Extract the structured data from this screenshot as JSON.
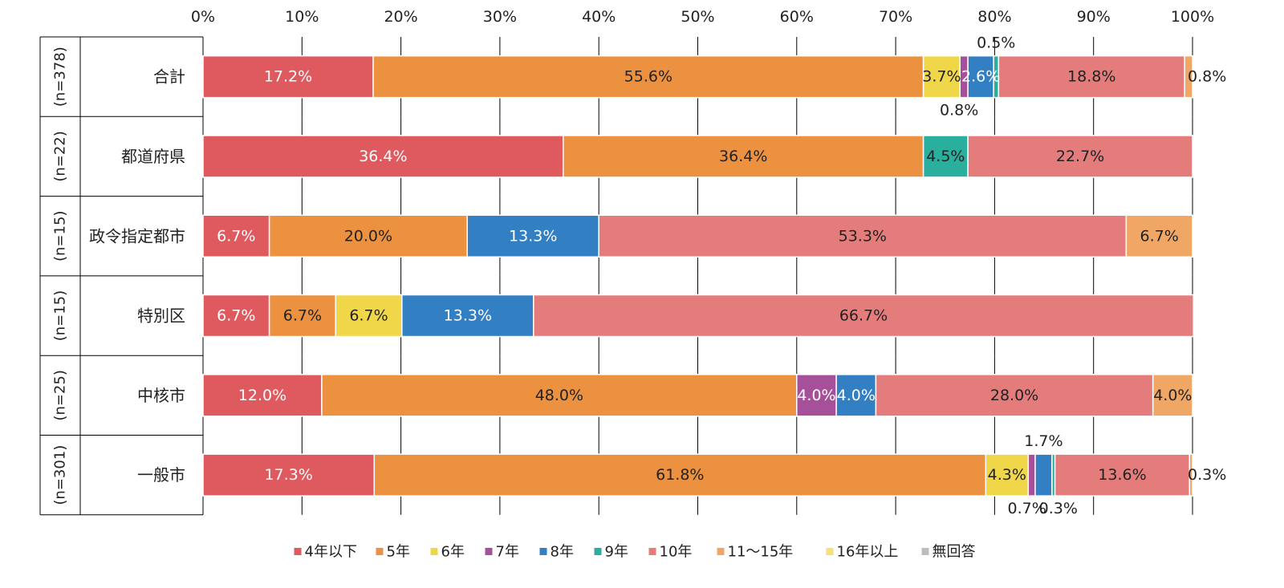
{
  "chart_data": {
    "type": "bar",
    "orientation": "horizontal",
    "stacked": true,
    "x_ticks": [
      "0%",
      "10%",
      "20%",
      "30%",
      "40%",
      "50%",
      "60%",
      "70%",
      "80%",
      "90%",
      "100%"
    ],
    "xlim": [
      0,
      100
    ],
    "grid": "vertical",
    "legend_position": "bottom",
    "categories": [
      "合計",
      "都道府県",
      "政令指定都市",
      "特別区",
      "中核市",
      "一般市"
    ],
    "n_labels": [
      "(n=378)",
      "(n=22)",
      "(n=15)",
      "(n=15)",
      "(n=25)",
      "(n=301)"
    ],
    "series": [
      {
        "name": "4年以下",
        "color": "#DE5A5F",
        "values": [
          17.2,
          36.4,
          6.7,
          6.7,
          12.0,
          17.3
        ],
        "label_color": "#ffffff"
      },
      {
        "name": "5年",
        "color": "#EB9140",
        "values": [
          55.6,
          36.4,
          20.0,
          6.7,
          48.0,
          61.8
        ],
        "label_color": "#222222"
      },
      {
        "name": "6年",
        "color": "#F0D74A",
        "values": [
          3.7,
          0,
          0,
          6.7,
          0,
          4.3
        ],
        "label_color": "#222222"
      },
      {
        "name": "7年",
        "color": "#A7509A",
        "values": [
          0.8,
          0,
          0,
          0,
          4.0,
          0.7
        ],
        "label_color": "#ffffff"
      },
      {
        "name": "8年",
        "color": "#3280C3",
        "values": [
          2.6,
          0,
          13.3,
          13.3,
          4.0,
          1.7
        ],
        "label_color": "#ffffff"
      },
      {
        "name": "9年",
        "color": "#2AAE9E",
        "values": [
          0.5,
          4.5,
          0,
          0,
          0,
          0.3
        ],
        "label_color": "#222222"
      },
      {
        "name": "10年",
        "color": "#E47C7C",
        "values": [
          18.8,
          22.7,
          53.3,
          66.7,
          28.0,
          13.6
        ],
        "label_color": "#222222"
      },
      {
        "name": "11〜15年",
        "color": "#F0A766",
        "values": [
          0.8,
          0,
          6.7,
          0,
          4.0,
          0.3
        ],
        "label_color": "#222222"
      },
      {
        "name": "16年以上",
        "color": "#F7E27A",
        "values": [
          0,
          0,
          0,
          0,
          0,
          0
        ],
        "label_color": "#222222"
      },
      {
        "name": "無回答",
        "color": "#BDBDBD",
        "values": [
          0,
          0,
          0,
          0,
          0,
          0
        ],
        "label_color": "#222222"
      }
    ],
    "value_labels": {
      "合計": {
        "4年以下": "17.2%",
        "5年": "55.6%",
        "6年": "3.7%",
        "7年": "0.8%",
        "8年": "2.6%",
        "9年": "0.5%",
        "10年": "18.8%",
        "11〜15年": "0.8%"
      },
      "都道府県": {
        "4年以下": "36.4%",
        "5年": "36.4%",
        "9年": "4.5%",
        "10年": "22.7%"
      },
      "政令指定都市": {
        "4年以下": "6.7%",
        "5年": "20.0%",
        "8年": "13.3%",
        "10年": "53.3%",
        "11〜15年": "6.7%"
      },
      "特別区": {
        "4年以下": "6.7%",
        "5年": "6.7%",
        "6年": "6.7%",
        "8年": "13.3%",
        "10年": "66.7%"
      },
      "中核市": {
        "4年以下": "12.0%",
        "5年": "48.0%",
        "7年": "4.0%",
        "8年": "4.0%",
        "10年": "28.0%",
        "11〜15年": "4.0%"
      },
      "一般市": {
        "4年以下": "17.3%",
        "5年": "61.8%",
        "6年": "4.3%",
        "7年": "0.7%",
        "8年": "1.7%",
        "9年": "0.3%",
        "10年": "13.6%",
        "11〜15年": "0.3%"
      }
    }
  }
}
